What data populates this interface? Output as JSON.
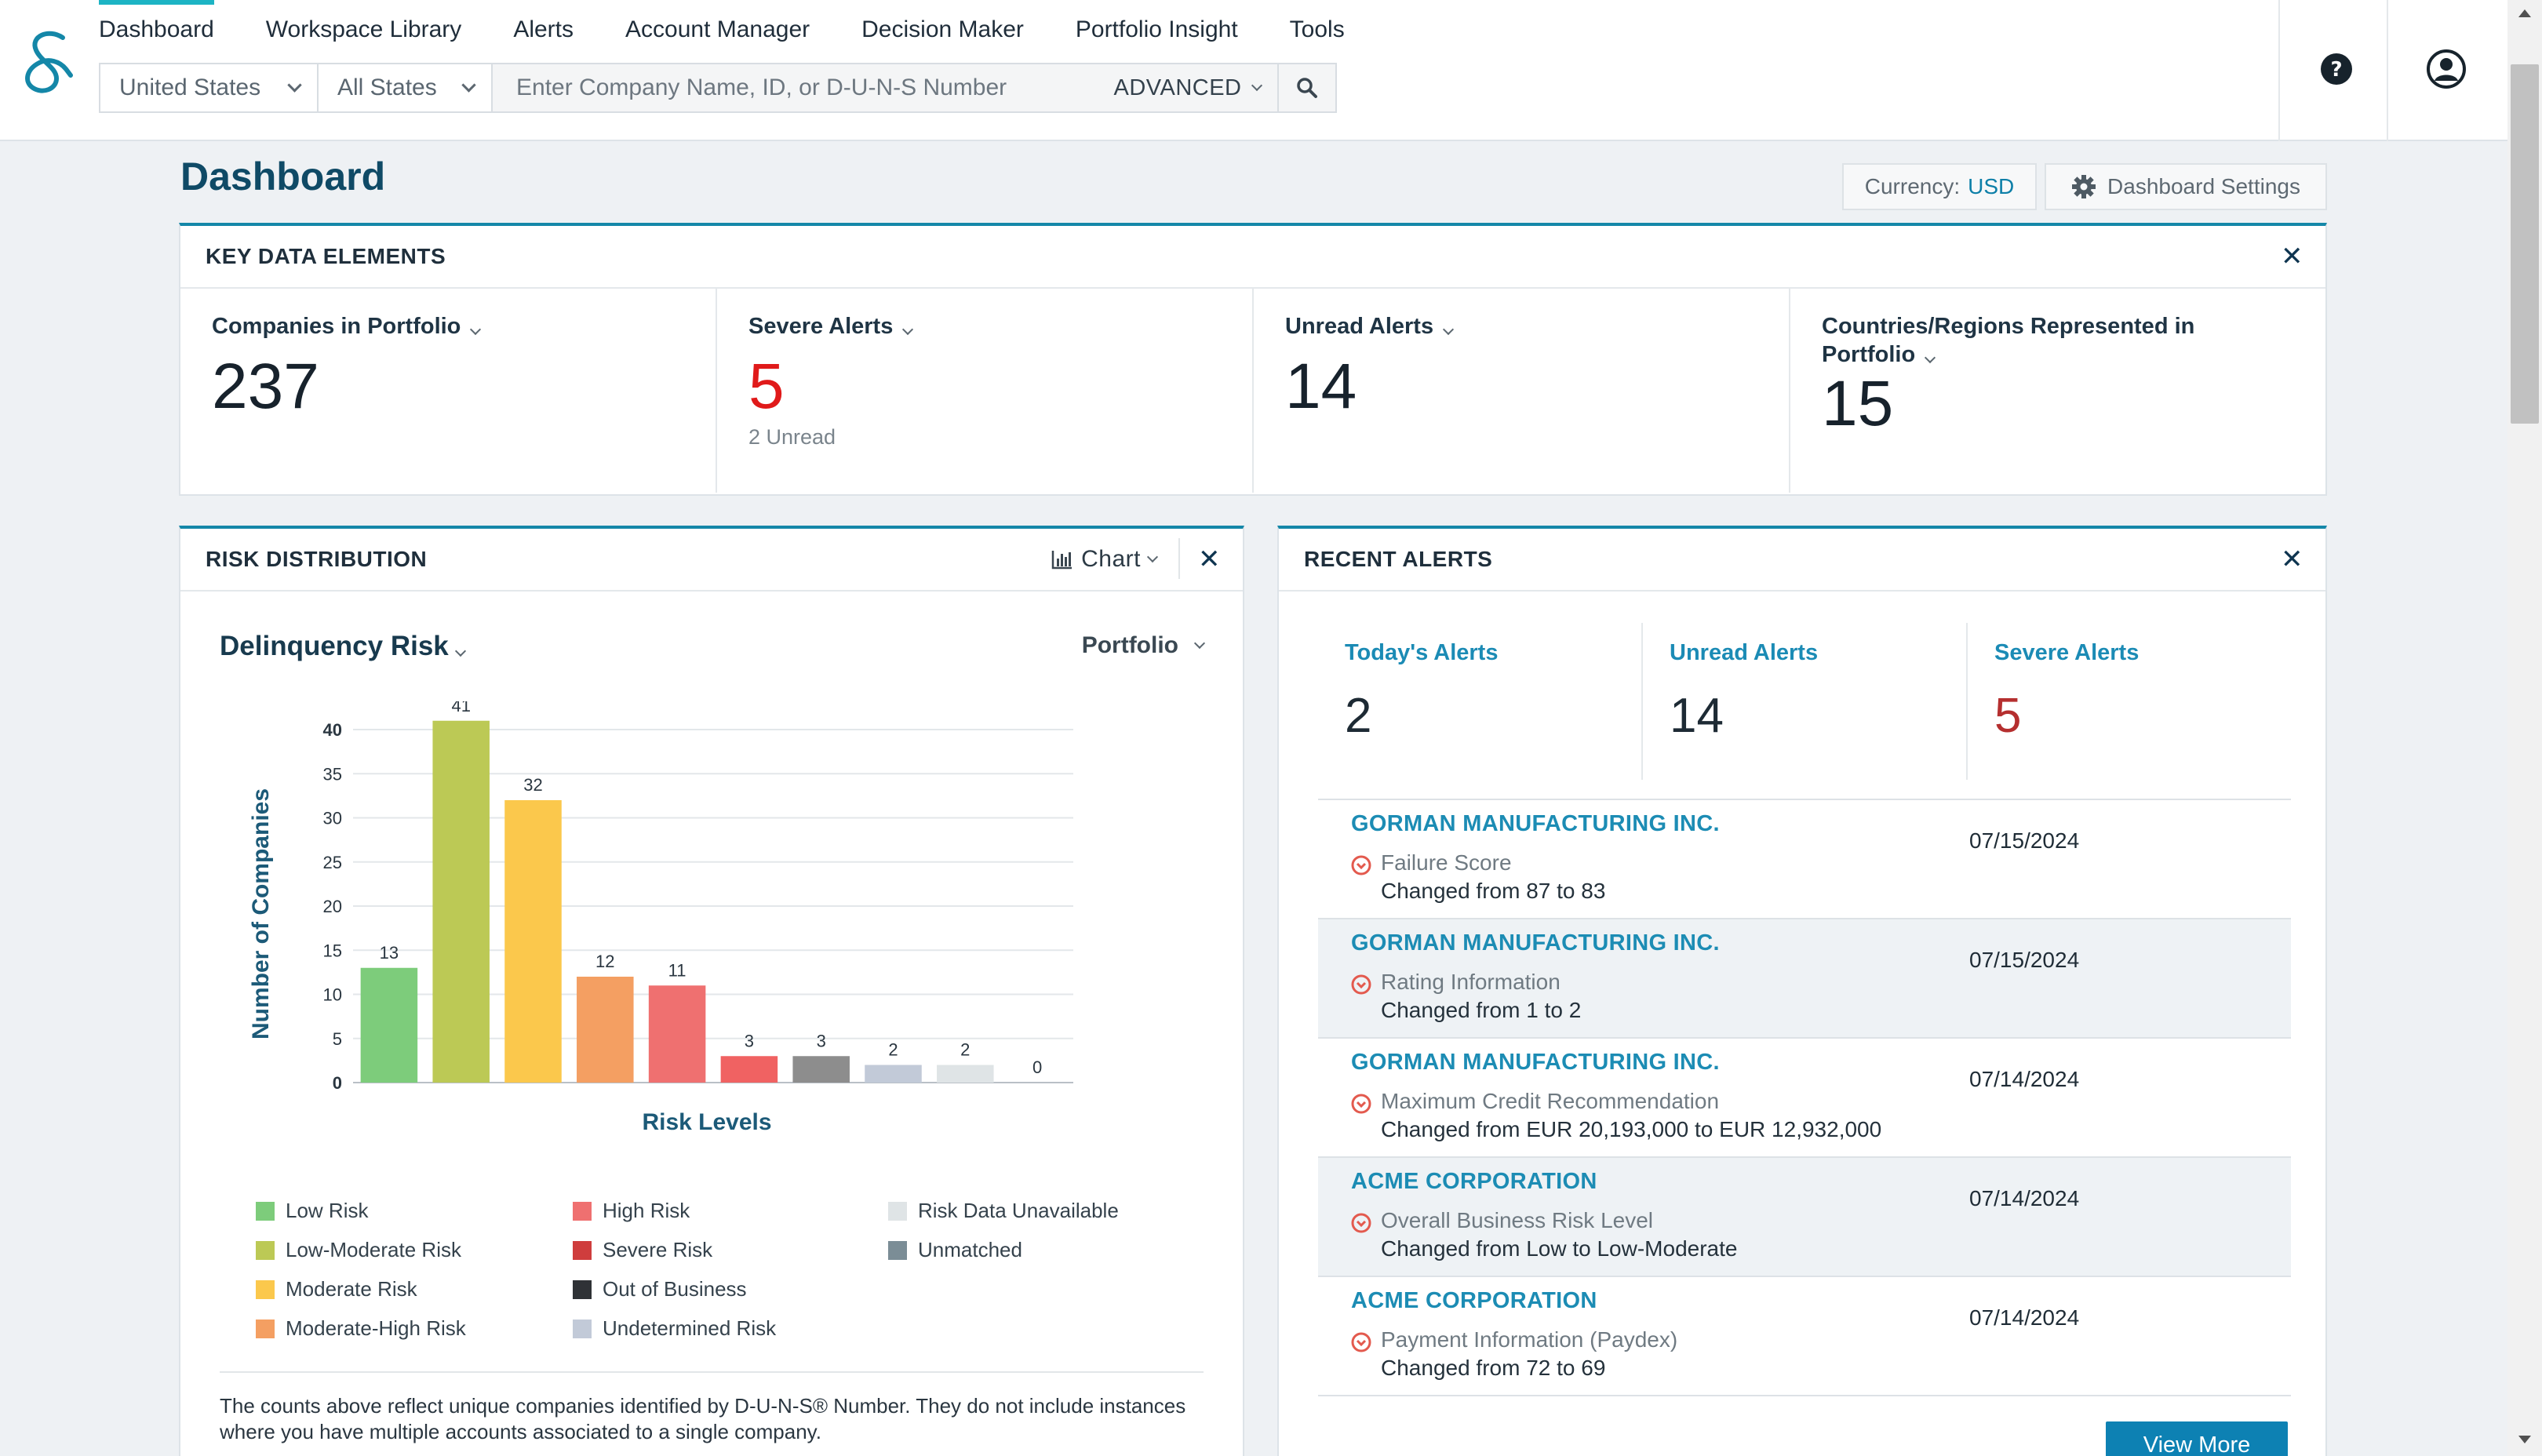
{
  "nav": {
    "items": [
      "Dashboard",
      "Workspace Library",
      "Alerts",
      "Account Manager",
      "Decision Maker",
      "Portfolio Insight",
      "Tools"
    ]
  },
  "search": {
    "country": "United States",
    "state": "All States",
    "placeholder": "Enter Company Name, ID, or D-U-N-S Number",
    "advanced": "ADVANCED"
  },
  "page": {
    "title": "Dashboard",
    "currency_label": "Currency:",
    "currency_value": "USD",
    "settings_label": "Dashboard Settings"
  },
  "key_data": {
    "title": "KEY DATA ELEMENTS",
    "cells": [
      {
        "label": "Companies in Portfolio",
        "value": "237",
        "sub": ""
      },
      {
        "label": "Severe Alerts",
        "value": "5",
        "sub": "2 Unread"
      },
      {
        "label": "Unread Alerts",
        "value": "14",
        "sub": ""
      },
      {
        "label": "Countries/Regions Represented in Portfolio",
        "value": "15",
        "sub": ""
      }
    ]
  },
  "risk": {
    "title": "RISK DISTRIBUTION",
    "view": "Chart",
    "metric": "Delinquency Risk",
    "scope": "Portfolio",
    "footnote": "The counts above reflect unique companies identified by D-U-N-S® Number. They do not include instances where you have multiple accounts associated to a single company.",
    "legend": [
      {
        "label": "Low Risk",
        "color": "#7dcc7b"
      },
      {
        "label": "Low-Moderate Risk",
        "color": "#bcc955"
      },
      {
        "label": "Moderate Risk",
        "color": "#fbc84c"
      },
      {
        "label": "Moderate-High Risk",
        "color": "#f49f62"
      },
      {
        "label": "High Risk",
        "color": "#ef7070"
      },
      {
        "label": "Severe Risk",
        "color": "#cf3d3d"
      },
      {
        "label": "Out of Business",
        "color": "#2f3236"
      },
      {
        "label": "Undetermined Risk",
        "color": "#c2cad8"
      },
      {
        "label": "Risk Data Unavailable",
        "color": "#dfe4e6"
      },
      {
        "label": "Unmatched",
        "color": "#7b8d96"
      }
    ]
  },
  "chart_data": {
    "type": "bar",
    "categories": [
      "Low Risk",
      "Low-Moderate Risk",
      "Moderate Risk",
      "Moderate-High Risk",
      "High Risk",
      "Severe Risk",
      "Unmatched",
      "Undetermined Risk",
      "Risk Data Unavailable",
      "Out of Business"
    ],
    "values": [
      13,
      41,
      32,
      12,
      11,
      3,
      3,
      2,
      2,
      0
    ],
    "colors": [
      "#7dcc7b",
      "#bcc955",
      "#fbc84c",
      "#f49f62",
      "#ef7070",
      "#f06262",
      "#8d8d8d",
      "#c2cad8",
      "#dfe4e6",
      "#2f3236"
    ],
    "xlabel": "Risk Levels",
    "ylabel": "Number of Companies",
    "ylim": [
      0,
      40
    ],
    "yticks": [
      0,
      5,
      10,
      15,
      20,
      25,
      30,
      35,
      40
    ],
    "grid": true
  },
  "alerts": {
    "title": "RECENT ALERTS",
    "stats": [
      {
        "label": "Today's Alerts",
        "value": "2"
      },
      {
        "label": "Unread Alerts",
        "value": "14"
      },
      {
        "label": "Severe Alerts",
        "value": "5"
      }
    ],
    "items": [
      {
        "company": "GORMAN MANUFACTURING INC.",
        "date": "07/15/2024",
        "title": "Failure Score",
        "change": "Changed from 87 to 83"
      },
      {
        "company": "GORMAN MANUFACTURING INC.",
        "date": "07/15/2024",
        "title": "Rating Information",
        "change": "Changed from 1 to 2"
      },
      {
        "company": "GORMAN MANUFACTURING INC.",
        "date": "07/14/2024",
        "title": "Maximum Credit Recommendation",
        "change": "Changed from EUR 20,193,000 to EUR 12,932,000"
      },
      {
        "company": "ACME CORPORATION",
        "date": "07/14/2024",
        "title": "Overall Business Risk Level",
        "change": "Changed from Low to Low-Moderate"
      },
      {
        "company": "ACME CORPORATION",
        "date": "07/14/2024",
        "title": "Payment Information (Paydex)",
        "change": "Changed from 72 to 69"
      }
    ],
    "view_more": "View More"
  }
}
